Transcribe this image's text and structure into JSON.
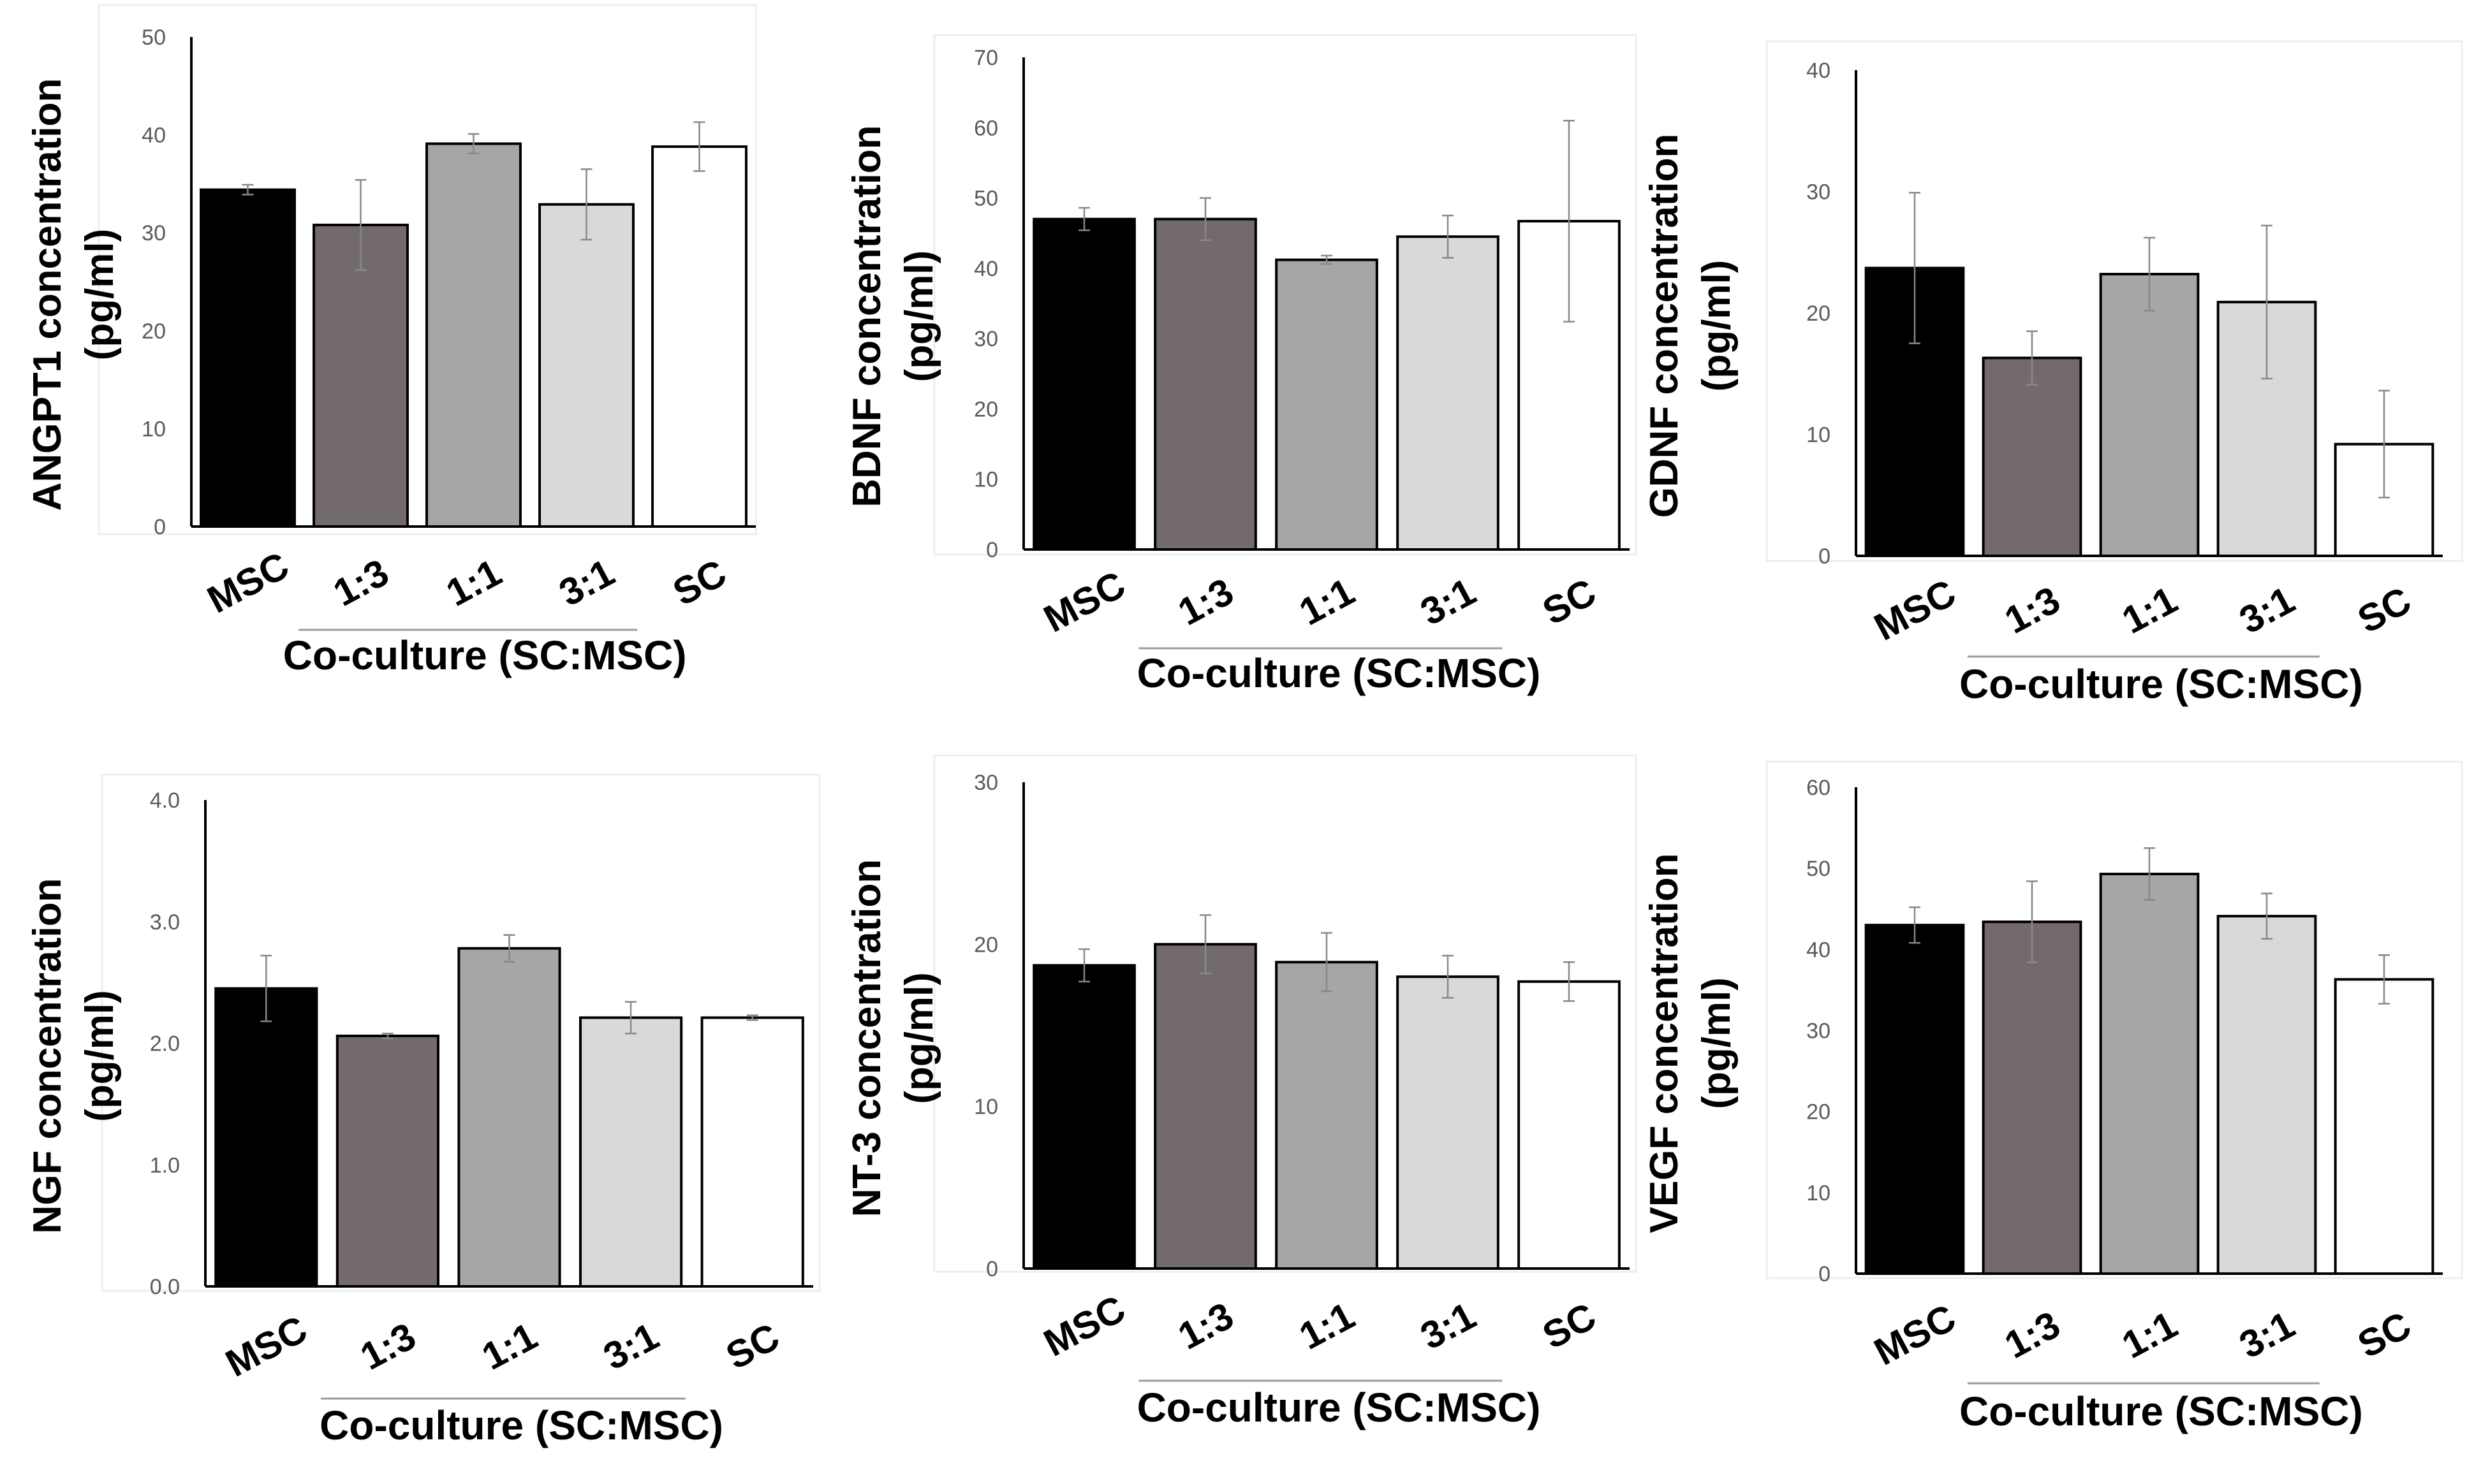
{
  "figure": {
    "x_group_label": "Co-culture (SC:MSC)",
    "bar_colors": [
      "#000000",
      "#736b6b",
      "#a6a6a6",
      "#d9d9d9",
      "#ffffff"
    ]
  },
  "chart_data": [
    {
      "type": "bar",
      "title": "",
      "ylabel_line1": "ANGPT1 concentration",
      "ylabel_line2": "(pg/ml)",
      "xlabel": "Co-culture (SC:MSC)",
      "categories": [
        "MSC",
        "1:3",
        "1:1",
        "3:1",
        "SC"
      ],
      "values": [
        34.4,
        30.8,
        39.1,
        32.9,
        38.8
      ],
      "errors": [
        0.5,
        4.6,
        1.0,
        3.6,
        2.5
      ],
      "ylim": [
        0,
        50
      ],
      "yticks": [
        "0",
        "10",
        "20",
        "30",
        "40",
        "50"
      ]
    },
    {
      "type": "bar",
      "title": "",
      "ylabel_line1": "BDNF concentration",
      "ylabel_line2": "(pg/ml)",
      "xlabel": "Co-culture (SC:MSC)",
      "categories": [
        "MSC",
        "1:3",
        "1:1",
        "3:1",
        "SC"
      ],
      "values": [
        47.0,
        47.0,
        41.2,
        44.5,
        46.7
      ],
      "errors": [
        1.6,
        3.0,
        0.6,
        3.0,
        14.3
      ],
      "ylim": [
        0,
        70
      ],
      "yticks": [
        "0",
        "10",
        "20",
        "30",
        "40",
        "50",
        "60",
        "70"
      ]
    },
    {
      "type": "bar",
      "title": "",
      "ylabel_line1": "GDNF concentration",
      "ylabel_line2": "(pg/ml)",
      "xlabel": "Co-culture (SC:MSC)",
      "categories": [
        "MSC",
        "1:3",
        "1:1",
        "3:1",
        "SC"
      ],
      "values": [
        23.7,
        16.3,
        23.2,
        20.9,
        9.2
      ],
      "errors": [
        6.2,
        2.2,
        3.0,
        6.3,
        4.4
      ],
      "ylim": [
        0,
        40
      ],
      "yticks": [
        "0",
        "10",
        "20",
        "30",
        "40"
      ]
    },
    {
      "type": "bar",
      "title": "",
      "ylabel_line1": "NGF concentration",
      "ylabel_line2": "(pg/ml)",
      "xlabel": "Co-culture (SC:MSC)",
      "categories": [
        "MSC",
        "1:3",
        "1:1",
        "3:1",
        "SC"
      ],
      "values": [
        2.45,
        2.06,
        2.78,
        2.21,
        2.21
      ],
      "errors": [
        0.27,
        0.02,
        0.11,
        0.13,
        0.02
      ],
      "ylim": [
        0,
        4
      ],
      "yticks": [
        "0.0",
        "1.0",
        "2.0",
        "3.0",
        "4.0"
      ]
    },
    {
      "type": "bar",
      "title": "",
      "ylabel_line1": "NT-3 concentration",
      "ylabel_line2": "(pg/ml)",
      "xlabel": "Co-culture (SC:MSC)",
      "categories": [
        "MSC",
        "1:3",
        "1:1",
        "3:1",
        "SC"
      ],
      "values": [
        18.7,
        20.0,
        18.9,
        18.0,
        17.7
      ],
      "errors": [
        1.0,
        1.8,
        1.8,
        1.3,
        1.2
      ],
      "ylim": [
        0,
        30
      ],
      "yticks": [
        "0",
        "10",
        "20",
        "30"
      ]
    },
    {
      "type": "bar",
      "title": "",
      "ylabel_line1": "VEGF concentration",
      "ylabel_line2": "(pg/ml)",
      "xlabel": "Co-culture (SC:MSC)",
      "categories": [
        "MSC",
        "1:3",
        "1:1",
        "3:1",
        "SC"
      ],
      "values": [
        43.0,
        43.4,
        49.3,
        44.1,
        36.3
      ],
      "errors": [
        2.2,
        5.0,
        3.2,
        2.8,
        3.0
      ],
      "ylim": [
        0,
        60
      ],
      "yticks": [
        "0",
        "10",
        "20",
        "30",
        "40",
        "50",
        "60"
      ]
    }
  ]
}
